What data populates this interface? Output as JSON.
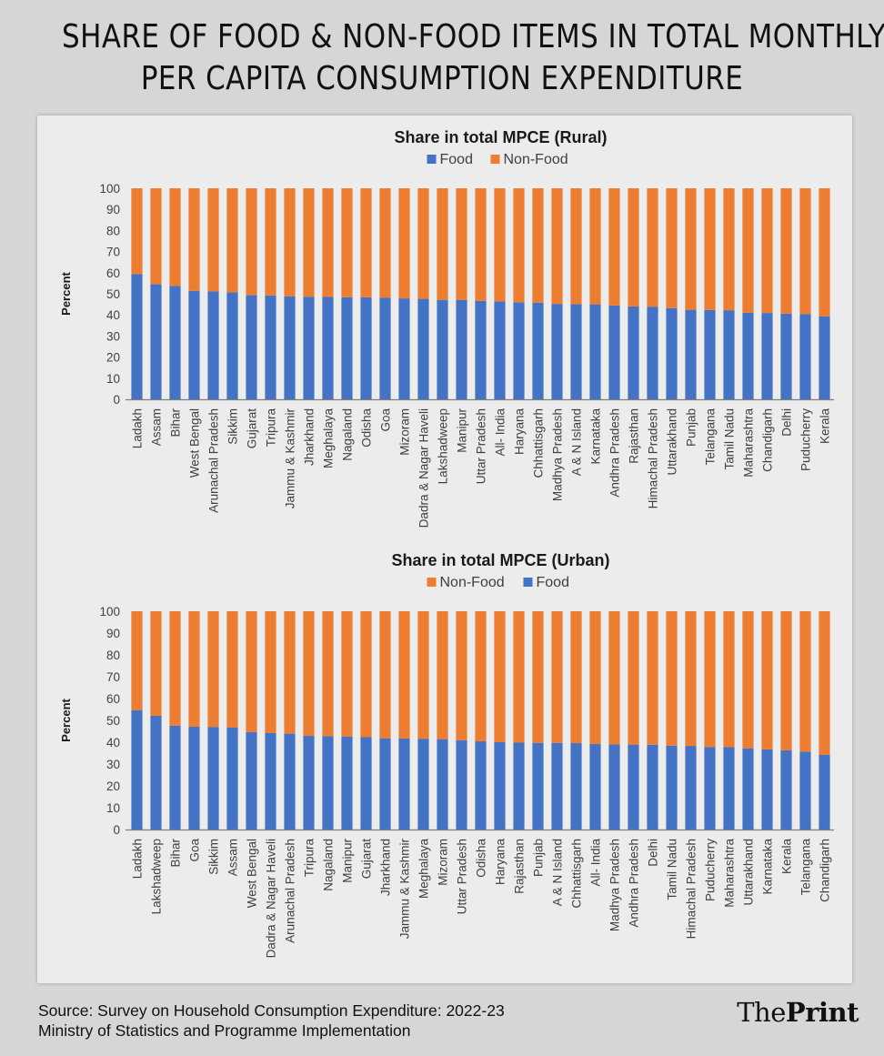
{
  "header": {
    "title_line1": "SHARE OF FOOD & NON-FOOD ITEMS IN TOTAL MONTHLY",
    "title_line2": "PER CAPITA CONSUMPTION EXPENDITURE"
  },
  "footer": {
    "source_line1": "Source: Survey on Household Consumption Expenditure: 2022-23",
    "source_line2": "Ministry of Statistics and Programme Implementation",
    "brand_part1": "The",
    "brand_part2": "Print"
  },
  "colors": {
    "food": "#4472c4",
    "nonfood": "#ed7d31",
    "axis": "#7f7f7f",
    "text": "#404040"
  },
  "chart_data": [
    {
      "type": "bar",
      "stacked": true,
      "title": "Share in total MPCE (Rural)",
      "ylabel": "Percent",
      "ylim": [
        0,
        100
      ],
      "yticks": [
        0,
        10,
        20,
        30,
        40,
        50,
        60,
        70,
        80,
        90,
        100
      ],
      "legend_order": [
        "Food",
        "Non-Food"
      ],
      "categories": [
        "Ladakh",
        "Assam",
        "Bihar",
        "West Bengal",
        "Arunachal Pradesh",
        "Sikkim",
        "Gujarat",
        "Tripura",
        "Jammu & Kashmir",
        "Jharkhand",
        "Meghalaya",
        "Nagaland",
        "Odisha",
        "Goa",
        "Mizoram",
        "Dadra & Nagar Haveli",
        "Lakshadweep",
        "Manipur",
        "Uttar Pradesh",
        "All- India",
        "Haryana",
        "Chhattisgarh",
        "Madhya Pradesh",
        "A & N Island",
        "Karnataka",
        "Andhra Pradesh",
        "Rajasthan",
        "Himachal Pradesh",
        "Uttarakhand",
        "Punjab",
        "Telangana",
        "Tamil Nadu",
        "Maharashtra",
        "Chandigarh",
        "Delhi",
        "Puducherry",
        "Kerala"
      ],
      "series": [
        {
          "name": "Food",
          "values": [
            59.3,
            54.5,
            53.7,
            51.4,
            51.1,
            50.7,
            49.3,
            49.2,
            48.8,
            48.6,
            48.5,
            48.4,
            48.3,
            48.2,
            47.8,
            47.6,
            47.1,
            47.1,
            46.6,
            46.4,
            46.0,
            45.8,
            45.2,
            45.1,
            45.0,
            44.5,
            44.0,
            43.9,
            43.2,
            42.4,
            42.3,
            42.2,
            41.0,
            40.9,
            40.6,
            40.4,
            39.3
          ]
        },
        {
          "name": "Non-Food",
          "values": [
            40.7,
            45.5,
            46.3,
            48.6,
            48.9,
            49.3,
            50.7,
            50.8,
            51.2,
            51.4,
            51.5,
            51.6,
            51.7,
            51.8,
            52.2,
            52.4,
            52.9,
            52.9,
            53.4,
            53.6,
            54.0,
            54.2,
            54.8,
            54.9,
            55.0,
            55.5,
            56.0,
            56.1,
            56.8,
            57.6,
            57.7,
            57.8,
            59.0,
            59.1,
            59.4,
            59.6,
            60.7
          ]
        }
      ]
    },
    {
      "type": "bar",
      "stacked": true,
      "title": "Share in total MPCE (Urban)",
      "ylabel": "Percent",
      "ylim": [
        0,
        100
      ],
      "yticks": [
        0,
        10,
        20,
        30,
        40,
        50,
        60,
        70,
        80,
        90,
        100
      ],
      "legend_order": [
        "Non-Food",
        "Food"
      ],
      "categories": [
        "Ladakh",
        "Lakshadweep",
        "Bihar",
        "Goa",
        "Sikkim",
        "Assam",
        "West Bengal",
        "Dadra & Nagar Haveli",
        "Arunachal Pradesh",
        "Tripura",
        "Nagaland",
        "Manipur",
        "Gujarat",
        "Jharkhand",
        "Jammu & Kashmir",
        "Meghalaya",
        "Mizoram",
        "Uttar Pradesh",
        "Odisha",
        "Haryana",
        "Rajasthan",
        "Punjab",
        "A & N Island",
        "Chhattisgarh",
        "All- India",
        "Madhya Pradesh",
        "Andhra Pradesh",
        "Delhi",
        "Tamil Nadu",
        "Himachal Pradesh",
        "Puducherry",
        "Maharashtra",
        "Uttarakhand",
        "Karnataka",
        "Kerala",
        "Telangana",
        "Chandigarh"
      ],
      "series": [
        {
          "name": "Food",
          "values": [
            54.7,
            52.1,
            47.6,
            47.1,
            47.0,
            46.8,
            44.6,
            44.2,
            43.9,
            42.9,
            42.8,
            42.6,
            42.3,
            41.8,
            41.7,
            41.6,
            41.4,
            40.9,
            40.4,
            40.0,
            39.8,
            39.7,
            39.7,
            39.6,
            39.2,
            39.0,
            38.9,
            38.8,
            38.4,
            38.3,
            37.8,
            37.7,
            37.2,
            36.7,
            36.3,
            35.7,
            34.2
          ]
        },
        {
          "name": "Non-Food",
          "values": [
            45.3,
            47.9,
            52.4,
            52.9,
            53.0,
            53.2,
            55.4,
            55.8,
            56.1,
            57.1,
            57.2,
            57.4,
            57.7,
            58.2,
            58.3,
            58.4,
            58.6,
            59.1,
            59.6,
            60.0,
            60.2,
            60.3,
            60.3,
            60.4,
            60.8,
            61.0,
            61.1,
            61.2,
            61.6,
            61.7,
            62.2,
            62.3,
            62.8,
            63.3,
            63.7,
            64.3,
            65.8
          ]
        }
      ]
    }
  ]
}
